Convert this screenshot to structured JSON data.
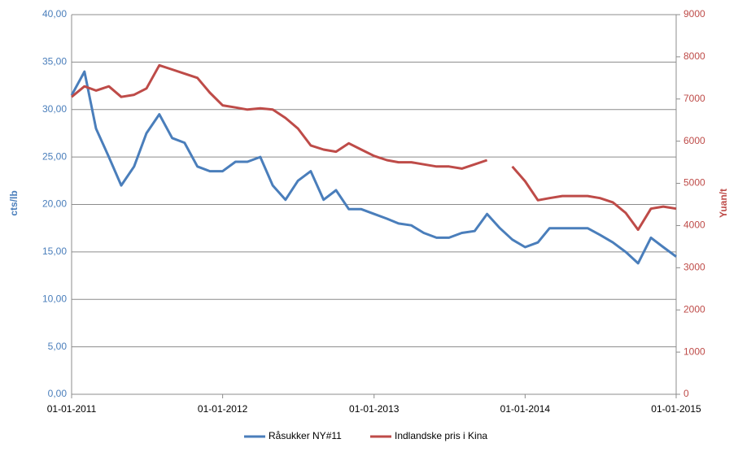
{
  "chart_data": {
    "type": "line",
    "y_label": "cts/lb",
    "y2_label": "Yuan/t",
    "x": [
      "2011-01-01",
      "2011-02-01",
      "2011-03-01",
      "2011-04-01",
      "2011-05-01",
      "2011-06-01",
      "2011-07-01",
      "2011-08-01",
      "2011-09-01",
      "2011-10-01",
      "2011-11-01",
      "2011-12-01",
      "2012-01-01",
      "2012-02-01",
      "2012-03-01",
      "2012-04-01",
      "2012-05-01",
      "2012-06-01",
      "2012-07-01",
      "2012-08-01",
      "2012-09-01",
      "2012-10-01",
      "2012-11-01",
      "2012-12-01",
      "2013-01-01",
      "2013-02-01",
      "2013-03-01",
      "2013-04-01",
      "2013-05-01",
      "2013-06-01",
      "2013-07-01",
      "2013-08-01",
      "2013-09-01",
      "2013-10-01",
      "2013-11-01",
      "2013-12-01",
      "2014-01-01",
      "2014-02-01",
      "2014-03-01",
      "2014-04-01",
      "2014-05-01",
      "2014-06-01",
      "2014-07-01",
      "2014-08-01",
      "2014-09-01",
      "2014-10-01",
      "2014-11-01",
      "2014-12-01",
      "2015-01-01"
    ],
    "series": [
      {
        "name": "Råsukker NY#11",
        "color": "#4a7ebb",
        "axis": "y",
        "values": [
          31.5,
          34,
          28,
          25,
          22,
          24,
          27.5,
          29.5,
          27,
          26.5,
          24,
          23.5,
          23.5,
          24.5,
          24.5,
          25,
          22,
          20.5,
          22.5,
          23.5,
          20.5,
          21.5,
          19.5,
          19.5,
          19,
          18.5,
          18,
          17.8,
          17,
          16.5,
          16.5,
          17,
          17.2,
          19,
          17.5,
          16.3,
          15.5,
          16,
          17.5,
          17.5,
          17.5,
          17.5,
          16.8,
          16,
          15,
          13.8,
          16.5,
          15.5,
          14.5
        ]
      },
      {
        "name": "Indlandske pris i Kina",
        "color": "#be4b48",
        "axis": "y2",
        "values": [
          7050,
          7300,
          7200,
          7300,
          7050,
          7100,
          7250,
          7800,
          7700,
          7600,
          7500,
          7150,
          6850,
          6800,
          6750,
          6780,
          6750,
          6550,
          6300,
          5900,
          5800,
          5750,
          5950,
          5800,
          5650,
          5550,
          5500,
          5500,
          5450,
          5400,
          5400,
          5350,
          5450,
          5550,
          null,
          5400,
          5050,
          4600,
          4650,
          4700,
          4700,
          4700,
          4650,
          4550,
          4300,
          3900,
          4400,
          4450,
          4400
        ]
      }
    ],
    "xlim": [
      "2011-01-01",
      "2015-01-01"
    ],
    "xticks": [
      {
        "value": "2011-01-01",
        "label": "01-01-2011"
      },
      {
        "value": "2012-01-01",
        "label": "01-01-2012"
      },
      {
        "value": "2013-01-01",
        "label": "01-01-2013"
      },
      {
        "value": "2014-01-01",
        "label": "01-01-2014"
      },
      {
        "value": "2015-01-01",
        "label": "01-01-2015"
      }
    ],
    "ylim": [
      0,
      40
    ],
    "yticks": [
      {
        "value": 0,
        "label": "0,00"
      },
      {
        "value": 5,
        "label": "5,00"
      },
      {
        "value": 10,
        "label": "10,00"
      },
      {
        "value": 15,
        "label": "15,00"
      },
      {
        "value": 20,
        "label": "20,00"
      },
      {
        "value": 25,
        "label": "25,00"
      },
      {
        "value": 30,
        "label": "30,00"
      },
      {
        "value": 35,
        "label": "35,00"
      },
      {
        "value": 40,
        "label": "40,00"
      }
    ],
    "y2lim": [
      0,
      9000
    ],
    "y2ticks": [
      0,
      1000,
      2000,
      3000,
      4000,
      5000,
      6000,
      7000,
      8000,
      9000
    ],
    "grid": true,
    "legend": "bottom"
  }
}
